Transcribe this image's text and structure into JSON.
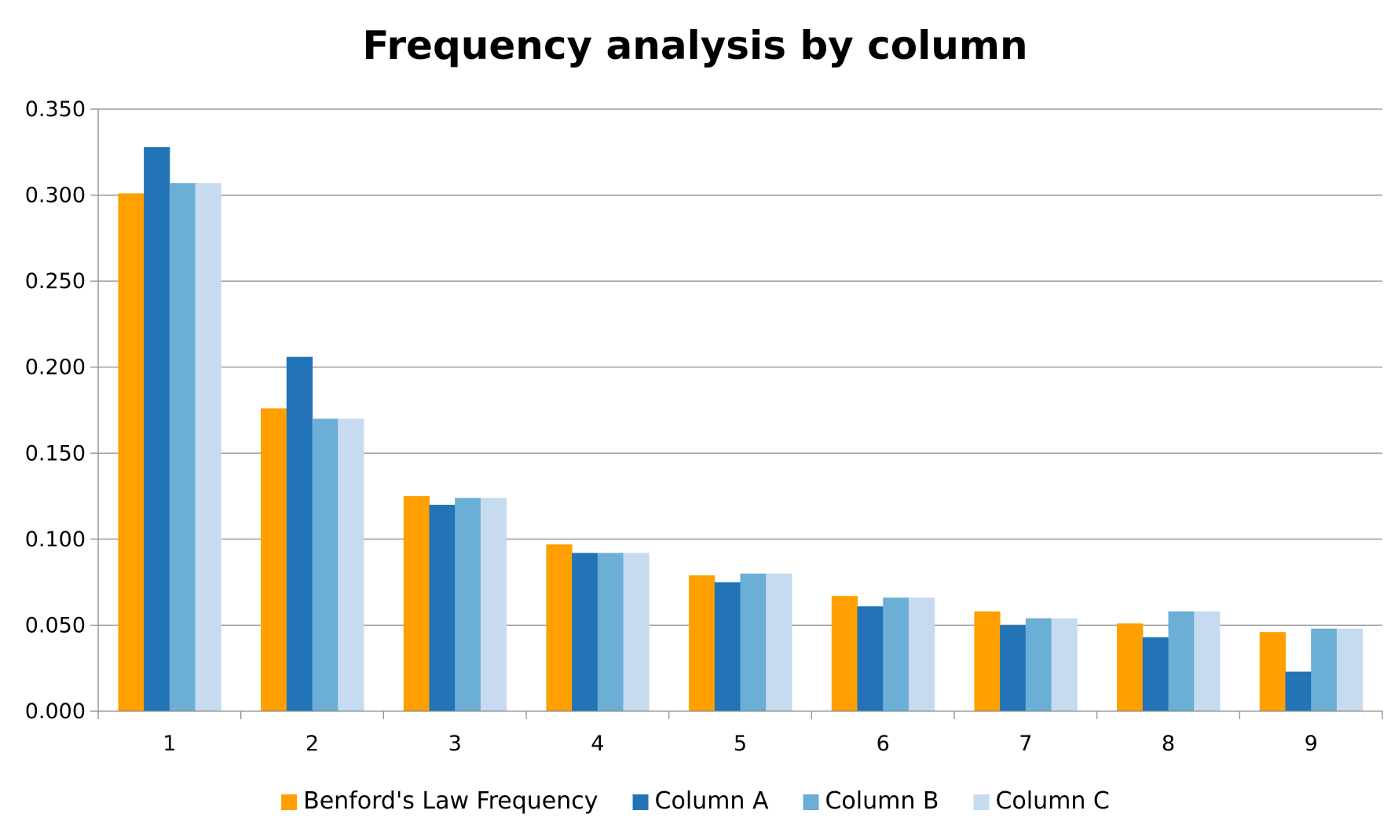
{
  "chart_data": {
    "type": "bar",
    "title": "Frequency analysis by column",
    "xlabel": "",
    "ylabel": "",
    "categories": [
      "1",
      "2",
      "3",
      "4",
      "5",
      "6",
      "7",
      "8",
      "9"
    ],
    "ylim": [
      0,
      0.35
    ],
    "y_ticks": [
      "0.000",
      "0.050",
      "0.100",
      "0.150",
      "0.200",
      "0.250",
      "0.300",
      "0.350"
    ],
    "y_tick_values": [
      0,
      0.05,
      0.1,
      0.15,
      0.2,
      0.25,
      0.3,
      0.35
    ],
    "grid": true,
    "legend_position": "bottom",
    "series": [
      {
        "name": "Benford's Law Frequency",
        "color": "#FF9F00",
        "values": [
          0.301,
          0.176,
          0.125,
          0.097,
          0.079,
          0.067,
          0.058,
          0.051,
          0.046
        ]
      },
      {
        "name": "Column A",
        "color": "#2374B6",
        "values": [
          0.328,
          0.206,
          0.12,
          0.092,
          0.075,
          0.061,
          0.05,
          0.043,
          0.023
        ]
      },
      {
        "name": "Column B",
        "color": "#6BAED6",
        "values": [
          0.307,
          0.17,
          0.124,
          0.092,
          0.08,
          0.066,
          0.054,
          0.058,
          0.048
        ]
      },
      {
        "name": "Column C",
        "color": "#C6DBEF",
        "values": [
          0.307,
          0.17,
          0.124,
          0.092,
          0.08,
          0.066,
          0.054,
          0.058,
          0.048
        ]
      }
    ]
  }
}
